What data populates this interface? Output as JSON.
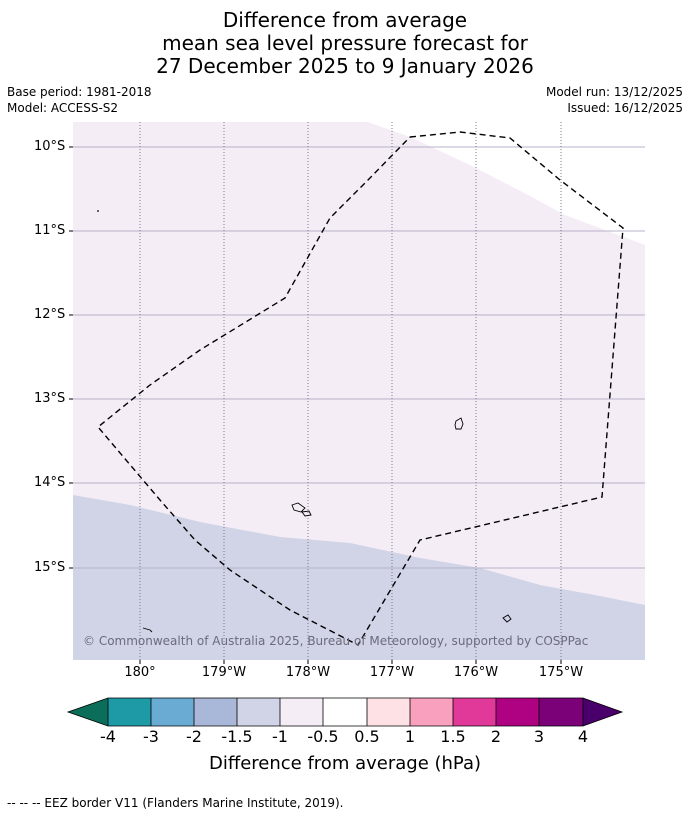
{
  "title": {
    "line1": "Difference from average",
    "line2": "mean sea level pressure forecast for",
    "line3": "27 December 2025 to 9 January 2026"
  },
  "meta": {
    "base_period": "Base period: 1981-2018",
    "model": "Model: ACCESS-S2",
    "model_run": "Model run: 13/12/2025",
    "issued": "Issued: 16/12/2025"
  },
  "map": {
    "lat_labels": [
      "10°S",
      "11°S",
      "12°S",
      "13°S",
      "14°S",
      "15°S"
    ],
    "lon_labels": [
      "180°",
      "179°W",
      "178°W",
      "177°W",
      "176°W",
      "175°W"
    ],
    "copyright": "© Commonwealth of Australia 2025, Bureau of Meteorology, supported by COSPPac",
    "colors": {
      "band_neg1_to_neg05": "#f4edf6",
      "band_neg15_to_neg1": "#d1d3e6",
      "gridline": "#b8b1c8"
    }
  },
  "colorbar": {
    "labels": [
      "-4",
      "-3",
      "-2",
      "-1.5",
      "-1",
      "-0.5",
      "0.5",
      "1",
      "1.5",
      "2",
      "3",
      "4"
    ],
    "colors": [
      "#0b6e5a",
      "#1e9aa6",
      "#6aabd4",
      "#a9b8d8",
      "#d1d3e6",
      "#f4edf6",
      "#ffffff",
      "#fde1e4",
      "#f9a0bf",
      "#e0399a",
      "#ae0283",
      "#7a0177",
      "#49006a"
    ],
    "title": "Difference from average (hPa)"
  },
  "footer": {
    "legend": "--  --  -- EEZ border V11 (Flanders Marine Institute, 2019)."
  }
}
